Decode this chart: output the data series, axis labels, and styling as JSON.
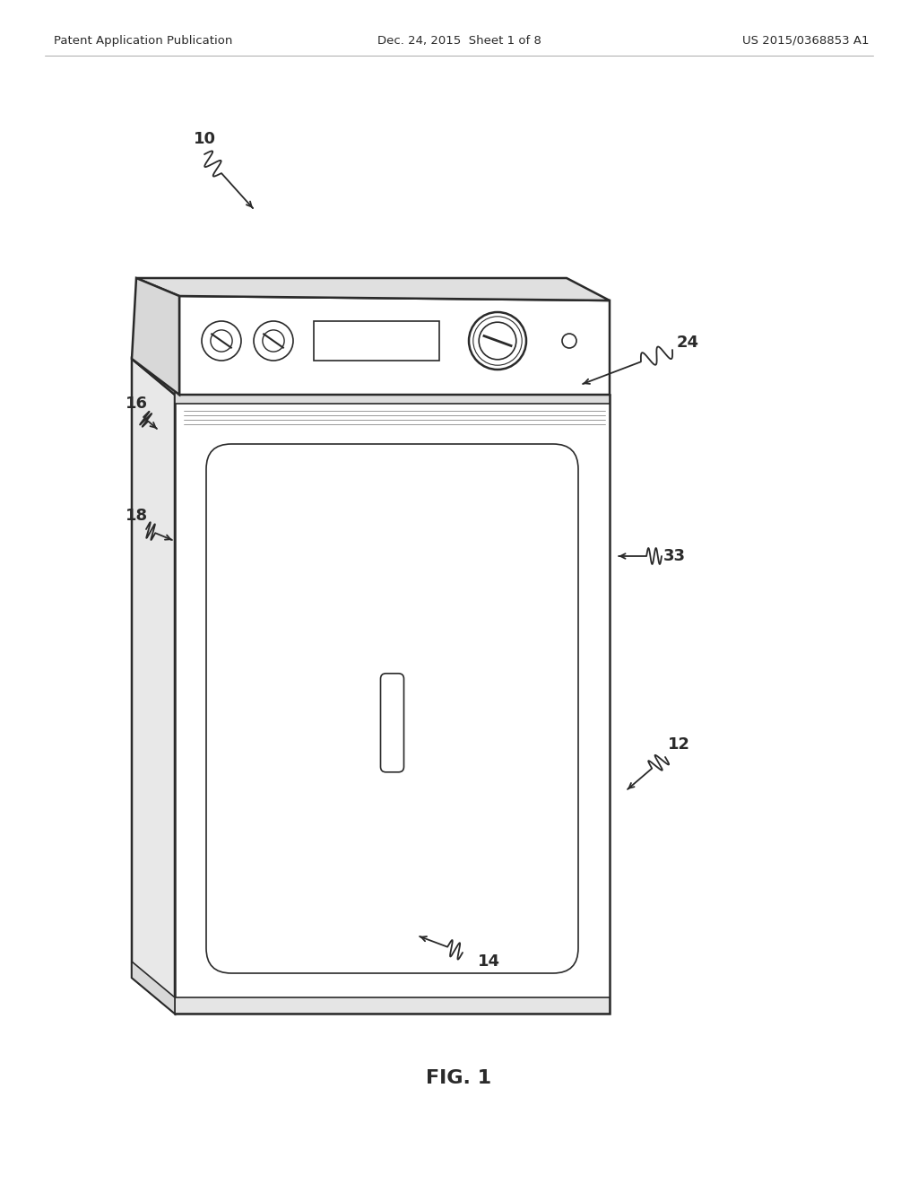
{
  "background_color": "#ffffff",
  "header_left": "Patent Application Publication",
  "header_center": "Dec. 24, 2015  Sheet 1 of 8",
  "header_right": "US 2015/0368853 A1",
  "figure_label": "FIG. 1",
  "line_color": "#2a2a2a",
  "line_color_light": "#555555"
}
